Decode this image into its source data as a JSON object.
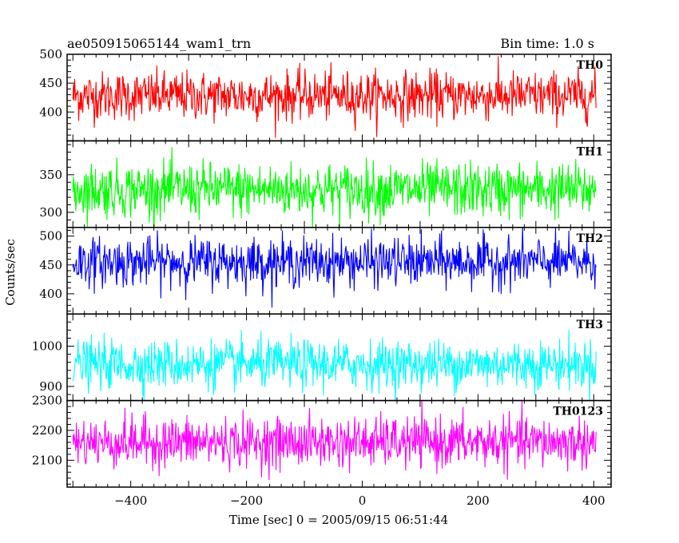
{
  "header": {
    "left_title": "ae050915065144_wam1_trn",
    "right_title": "Bin time: 1.0 s"
  },
  "chart_data": {
    "type": "line",
    "xlabel": "Time [sec] 0 = 2005/09/15 06:51:44",
    "ylabel": "Counts/sec",
    "xlim": [
      -510,
      430
    ],
    "x_range": [
      -500,
      404
    ],
    "x_step": 1,
    "xticks": [
      -400,
      -200,
      0,
      200,
      400
    ],
    "xtick_labels": [
      "−400",
      "−200",
      "0",
      "200",
      "400"
    ],
    "series": [
      {
        "name": "TH0",
        "color": "#ff0000",
        "ylim": [
          350,
          500
        ],
        "yticks": [
          400,
          450,
          500
        ],
        "ytick_labels": [
          "400",
          "450",
          "500"
        ],
        "mean": 428,
        "sigma": 21
      },
      {
        "name": "TH1",
        "color": "#00ff00",
        "ylim": [
          280,
          395
        ],
        "yticks": [
          300,
          350
        ],
        "ytick_labels": [
          "300",
          "350"
        ],
        "mean": 330,
        "sigma": 18
      },
      {
        "name": "TH2",
        "color": "#0000ff",
        "ylim": [
          365,
          515
        ],
        "yticks": [
          400,
          450,
          500
        ],
        "ytick_labels": [
          "400",
          "450",
          "500"
        ],
        "mean": 455,
        "sigma": 21
      },
      {
        "name": "TH3",
        "color": "#00ffff",
        "ylim": [
          865,
          1080
        ],
        "yticks": [
          900,
          1000
        ],
        "ytick_labels": [
          "900",
          "1000"
        ],
        "mean": 955,
        "sigma": 30
      },
      {
        "name": "TH0123",
        "color": "#ff00ff",
        "ylim": [
          2010,
          2300
        ],
        "yticks": [
          2100,
          2200,
          2300
        ],
        "ytick_labels": [
          "2100",
          "2200",
          "2300"
        ],
        "mean": 2160,
        "sigma": 42
      }
    ]
  }
}
